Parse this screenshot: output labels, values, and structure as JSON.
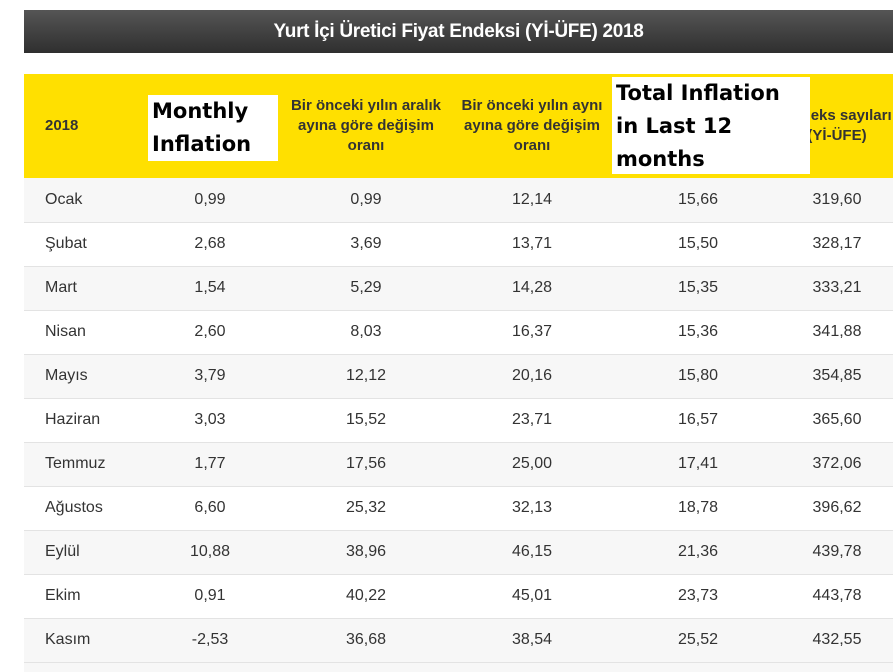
{
  "page_title": "Yurt İçi Üretici Fiyat Endeksi (Yİ-ÜFE) 2018",
  "headers": [
    "2018",
    "",
    "Bir önceki yılın aralık ayına göre değişim oranı",
    "Bir önceki yılın aynı ayına göre değişim oranı",
    "",
    "Endeks sayıları (Yİ-ÜFE)"
  ],
  "overlays": {
    "monthly": "Monthly Inflation",
    "total": "Total Inflation in Last 12 months"
  },
  "rows": [
    [
      "Ocak",
      "0,99",
      "0,99",
      "12,14",
      "15,66",
      "319,60"
    ],
    [
      "Şubat",
      "2,68",
      "3,69",
      "13,71",
      "15,50",
      "328,17"
    ],
    [
      "Mart",
      "1,54",
      "5,29",
      "14,28",
      "15,35",
      "333,21"
    ],
    [
      "Nisan",
      "2,60",
      "8,03",
      "16,37",
      "15,36",
      "341,88"
    ],
    [
      "Mayıs",
      "3,79",
      "12,12",
      "20,16",
      "15,80",
      "354,85"
    ],
    [
      "Haziran",
      "3,03",
      "15,52",
      "23,71",
      "16,57",
      "365,60"
    ],
    [
      "Temmuz",
      "1,77",
      "17,56",
      "25,00",
      "17,41",
      "372,06"
    ],
    [
      "Ağustos",
      "6,60",
      "25,32",
      "32,13",
      "18,78",
      "396,62"
    ],
    [
      "Eylül",
      "10,88",
      "38,96",
      "46,15",
      "21,36",
      "439,78"
    ],
    [
      "Ekim",
      "0,91",
      "40,22",
      "45,01",
      "23,73",
      "443,78"
    ],
    [
      "Kasım",
      "-2,53",
      "36,68",
      "38,54",
      "25,52",
      "432,55"
    ]
  ],
  "colors": {
    "header_bg": "#ffe000",
    "title_bg": "#3a3a3a",
    "row_alt": "#f7f7f7"
  }
}
